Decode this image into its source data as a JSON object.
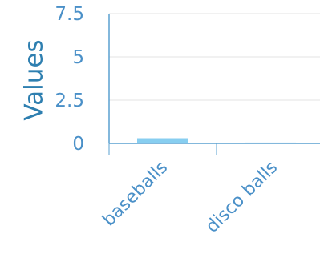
{
  "chart_data": {
    "type": "bar",
    "categories": [
      "baseballs",
      "disco balls"
    ],
    "values": [
      0.3,
      0.05
    ],
    "ylabel": "Values",
    "xlabel": "",
    "ylim": [
      0,
      7.5
    ],
    "yticks": [
      "0",
      "2.5",
      "5",
      "7.5"
    ],
    "grid": true,
    "colors": {
      "bar": "#87cef0",
      "axis": "#5aa0d0",
      "grid": "#e3e3e3",
      "text": "#4a90c8",
      "title": "#2e7fb0"
    }
  }
}
